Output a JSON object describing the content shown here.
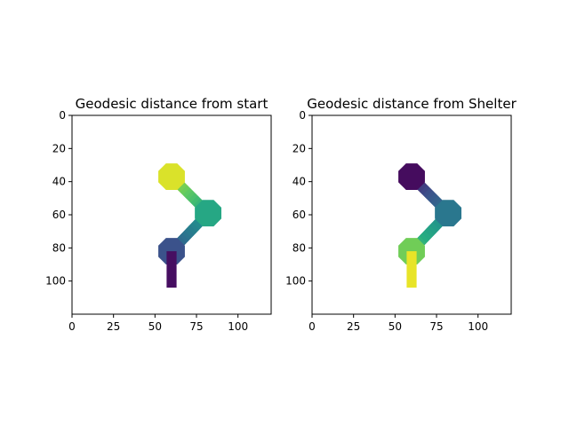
{
  "chart_data": [
    {
      "type": "heatmap",
      "title": "Geodesic distance from start",
      "colormap": "viridis",
      "xlim": [
        0,
        120
      ],
      "ylim": [
        120,
        0
      ],
      "xticks": [
        0,
        25,
        50,
        75,
        100
      ],
      "yticks": [
        0,
        20,
        40,
        60,
        80,
        100
      ],
      "grid": false,
      "legend": "none",
      "regions": [
        {
          "name": "upper-blob",
          "center": [
            60,
            37
          ],
          "radius": 8,
          "value": 0.95
        },
        {
          "name": "right-blob",
          "center": [
            82,
            59
          ],
          "radius": 8,
          "value": 0.6
        },
        {
          "name": "lower-blob",
          "center": [
            60,
            82
          ],
          "radius": 8,
          "value": 0.25
        },
        {
          "name": "stem",
          "x": [
            57,
            63
          ],
          "y": [
            82,
            104
          ],
          "value": 0.05
        }
      ],
      "paths": [
        {
          "from": [
            60,
            37
          ],
          "to": [
            82,
            59
          ],
          "width": 6,
          "value_from": 0.9,
          "value_to": 0.62
        },
        {
          "from": [
            82,
            59
          ],
          "to": [
            60,
            82
          ],
          "width": 6,
          "value_from": 0.58,
          "value_to": 0.3
        }
      ]
    },
    {
      "type": "heatmap",
      "title": "Geodesic distance from Shelter",
      "colormap": "viridis",
      "xlim": [
        0,
        120
      ],
      "ylim": [
        120,
        0
      ],
      "xticks": [
        0,
        25,
        50,
        75,
        100
      ],
      "yticks": [
        0,
        20,
        40,
        60,
        80,
        100
      ],
      "grid": false,
      "legend": "none",
      "regions": [
        {
          "name": "upper-blob",
          "center": [
            60,
            37
          ],
          "radius": 8,
          "value": 0.04
        },
        {
          "name": "right-blob",
          "center": [
            82,
            59
          ],
          "radius": 8,
          "value": 0.4
        },
        {
          "name": "lower-blob",
          "center": [
            60,
            82
          ],
          "radius": 8,
          "value": 0.78
        },
        {
          "name": "stem",
          "x": [
            57,
            63
          ],
          "y": [
            82,
            104
          ],
          "value": 0.97
        }
      ],
      "paths": [
        {
          "from": [
            60,
            37
          ],
          "to": [
            82,
            59
          ],
          "width": 6,
          "value_from": 0.08,
          "value_to": 0.38
        },
        {
          "from": [
            82,
            59
          ],
          "to": [
            60,
            82
          ],
          "width": 6,
          "value_from": 0.42,
          "value_to": 0.7
        }
      ]
    }
  ]
}
